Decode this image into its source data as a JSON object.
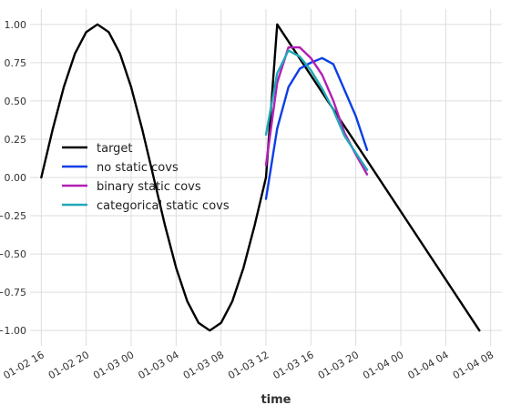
{
  "chart_data": {
    "type": "line",
    "xlabel": "time",
    "ylabel": "",
    "title": "",
    "xlim": [
      "2024-01-02T15:00",
      "2024-01-04T09:00"
    ],
    "ylim": [
      -1.1,
      1.1
    ],
    "grid": true,
    "legend_position": "center-left",
    "x_ticks": [
      {
        "x": "2024-01-02T16:00",
        "label": "01-02 16"
      },
      {
        "x": "2024-01-02T20:00",
        "label": "01-02 20"
      },
      {
        "x": "2024-01-03T00:00",
        "label": "01-03 00"
      },
      {
        "x": "2024-01-03T04:00",
        "label": "01-03 04"
      },
      {
        "x": "2024-01-03T08:00",
        "label": "01-03 08"
      },
      {
        "x": "2024-01-03T12:00",
        "label": "01-03 12"
      },
      {
        "x": "2024-01-03T16:00",
        "label": "01-03 16"
      },
      {
        "x": "2024-01-03T20:00",
        "label": "01-03 20"
      },
      {
        "x": "2024-01-04T00:00",
        "label": "01-04 00"
      },
      {
        "x": "2024-01-04T04:00",
        "label": "01-04 04"
      },
      {
        "x": "2024-01-04T08:00",
        "label": "01-04 08"
      }
    ],
    "y_ticks": [
      {
        "y": 1.0,
        "label": "1.00"
      },
      {
        "y": 0.75,
        "label": "0.75"
      },
      {
        "y": 0.5,
        "label": "0.50"
      },
      {
        "y": 0.25,
        "label": "0.25"
      },
      {
        "y": 0.0,
        "label": "0.00"
      },
      {
        "y": -0.25,
        "label": "−0.25"
      },
      {
        "y": -0.5,
        "label": "−0.50"
      },
      {
        "y": -0.75,
        "label": "−0.75"
      },
      {
        "y": -1.0,
        "label": "−1.00"
      }
    ],
    "series": [
      {
        "name": "target",
        "color": "#000000",
        "points": [
          [
            "2024-01-02T16:00",
            0.0
          ],
          [
            "2024-01-02T17:00",
            0.31
          ],
          [
            "2024-01-02T18:00",
            0.59
          ],
          [
            "2024-01-02T19:00",
            0.81
          ],
          [
            "2024-01-02T20:00",
            0.95
          ],
          [
            "2024-01-02T21:00",
            1.0
          ],
          [
            "2024-01-02T22:00",
            0.95
          ],
          [
            "2024-01-02T23:00",
            0.81
          ],
          [
            "2024-01-03T00:00",
            0.59
          ],
          [
            "2024-01-03T01:00",
            0.31
          ],
          [
            "2024-01-03T02:00",
            0.0
          ],
          [
            "2024-01-03T03:00",
            -0.31
          ],
          [
            "2024-01-03T04:00",
            -0.59
          ],
          [
            "2024-01-03T05:00",
            -0.81
          ],
          [
            "2024-01-03T06:00",
            -0.95
          ],
          [
            "2024-01-03T07:00",
            -1.0
          ],
          [
            "2024-01-03T08:00",
            -0.95
          ],
          [
            "2024-01-03T09:00",
            -0.81
          ],
          [
            "2024-01-03T10:00",
            -0.59
          ],
          [
            "2024-01-03T11:00",
            -0.31
          ],
          [
            "2024-01-03T12:00",
            0.0
          ],
          [
            "2024-01-03T13:00",
            1.0
          ],
          [
            "2024-01-04T07:00",
            -1.0
          ]
        ]
      },
      {
        "name": "no static covs",
        "color": "#0b3ee6",
        "points": [
          [
            "2024-01-03T12:00",
            -0.14
          ],
          [
            "2024-01-03T13:00",
            0.32
          ],
          [
            "2024-01-03T14:00",
            0.59
          ],
          [
            "2024-01-03T15:00",
            0.71
          ],
          [
            "2024-01-03T16:00",
            0.75
          ],
          [
            "2024-01-03T17:00",
            0.78
          ],
          [
            "2024-01-03T18:00",
            0.74
          ],
          [
            "2024-01-03T19:00",
            0.57
          ],
          [
            "2024-01-03T20:00",
            0.4
          ],
          [
            "2024-01-03T21:00",
            0.18
          ]
        ]
      },
      {
        "name": "binary static covs",
        "color": "#b21fb5",
        "points": [
          [
            "2024-01-03T12:00",
            0.08
          ],
          [
            "2024-01-03T13:00",
            0.62
          ],
          [
            "2024-01-03T14:00",
            0.85
          ],
          [
            "2024-01-03T15:00",
            0.85
          ],
          [
            "2024-01-03T16:00",
            0.78
          ],
          [
            "2024-01-03T17:00",
            0.67
          ],
          [
            "2024-01-03T18:00",
            0.5
          ],
          [
            "2024-01-03T19:00",
            0.29
          ],
          [
            "2024-01-03T20:00",
            0.15
          ],
          [
            "2024-01-03T21:00",
            0.02
          ]
        ]
      },
      {
        "name": "categorical static covs",
        "color": "#20a8b8",
        "points": [
          [
            "2024-01-03T12:00",
            0.28
          ],
          [
            "2024-01-03T13:00",
            0.68
          ],
          [
            "2024-01-03T14:00",
            0.83
          ],
          [
            "2024-01-03T15:00",
            0.79
          ],
          [
            "2024-01-03T16:00",
            0.7
          ],
          [
            "2024-01-03T17:00",
            0.58
          ],
          [
            "2024-01-03T18:00",
            0.44
          ],
          [
            "2024-01-03T19:00",
            0.27
          ],
          [
            "2024-01-03T20:00",
            0.16
          ],
          [
            "2024-01-03T21:00",
            0.05
          ]
        ]
      }
    ]
  }
}
